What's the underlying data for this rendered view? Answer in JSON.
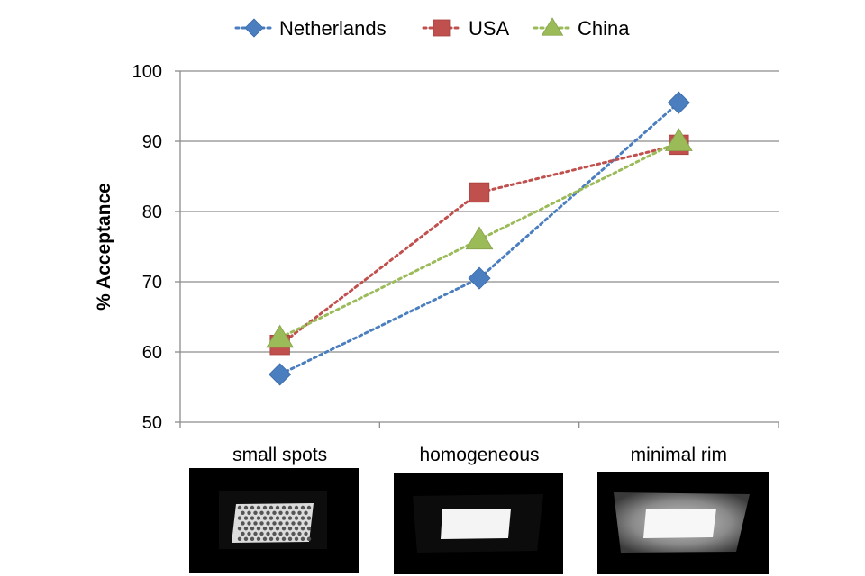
{
  "chart_data": {
    "type": "line",
    "categories": [
      "small spots",
      "homogeneous",
      "minimal rim"
    ],
    "ylabel": "% Acceptance",
    "xlabel": "",
    "ylim": [
      50,
      100
    ],
    "yticks": [
      50,
      60,
      70,
      80,
      90,
      100
    ],
    "grid": true,
    "legend_position": "top",
    "series": [
      {
        "name": "Netherlands",
        "values": [
          56.8,
          70.5,
          95.5
        ],
        "color": "#4a7ebf",
        "marker": "diamond",
        "line_style": "dotted"
      },
      {
        "name": "USA",
        "values": [
          61.0,
          82.7,
          89.5
        ],
        "color": "#c0504d",
        "marker": "square",
        "line_style": "dotted"
      },
      {
        "name": "China",
        "values": [
          62.0,
          76.0,
          90.0
        ],
        "color": "#9bbb59",
        "marker": "triangle",
        "line_style": "dotted"
      }
    ],
    "category_images": [
      {
        "category": "small spots",
        "description_icon": "grid-of-light-spots-image"
      },
      {
        "category": "homogeneous",
        "description_icon": "uniform-light-panel-image"
      },
      {
        "category": "minimal rim",
        "description_icon": "light-panel-with-glowing-rim-image"
      }
    ]
  }
}
